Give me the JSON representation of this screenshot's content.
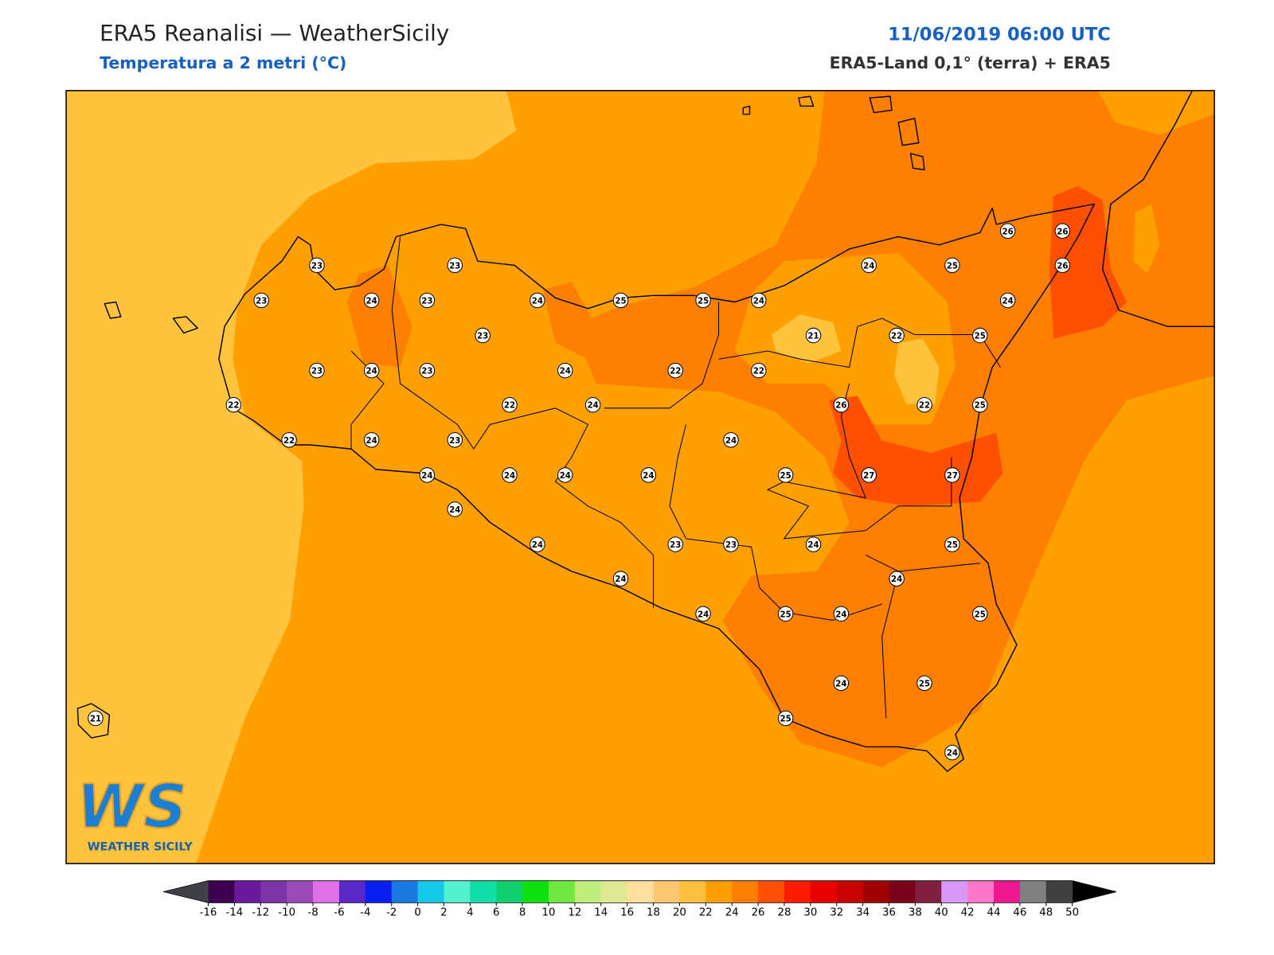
{
  "header": {
    "title": "ERA5 Reanalisi — WeatherSicily",
    "subtitle": "Temperatura a 2 metri (°C)",
    "datetime": "11/06/2019 06:00 UTC",
    "source": "ERA5-Land 0,1° (terra) + ERA5"
  },
  "stations": [
    23,
    23,
    23,
    24,
    23,
    24,
    25,
    25,
    24,
    23,
    23,
    24,
    23,
    24,
    22,
    22,
    22,
    22,
    24,
    22,
    24,
    23,
    24,
    24,
    24,
    24,
    24,
    24,
    24,
    24,
    23,
    23,
    24,
    24,
    25,
    24,
    25,
    27,
    27,
    26,
    22,
    25,
    21,
    22,
    25,
    24,
    25,
    24,
    26,
    26,
    26,
    25,
    24,
    25,
    24,
    25,
    25,
    24,
    21
  ],
  "colorbar": {
    "ticks": [
      -16,
      -14,
      -12,
      -10,
      -8,
      -6,
      -4,
      -2,
      0,
      2,
      4,
      6,
      8,
      10,
      12,
      14,
      16,
      18,
      20,
      22,
      24,
      26,
      28,
      30,
      32,
      34,
      36,
      38,
      40,
      42,
      44,
      46,
      48,
      50
    ],
    "colors": [
      "#3c0050",
      "#6a1a9a",
      "#7b35a8",
      "#9b4bb8",
      "#e070e8",
      "#5a28c8",
      "#0a1ef0",
      "#1a78e0",
      "#14c8e8",
      "#55f0d0",
      "#10e0a8",
      "#10d070",
      "#10e010",
      "#70e840",
      "#c0ec80",
      "#dde890",
      "#ffe0a0",
      "#ffc870",
      "#ffc040",
      "#ffa000",
      "#ff8000",
      "#ff5000",
      "#ff1a00",
      "#e60000",
      "#c80000",
      "#a00000",
      "#780018",
      "#802040",
      "#d898f8",
      "#ff78c8",
      "#f01890",
      "#808080",
      "#404040"
    ],
    "under_color": "#404048",
    "over_color": "#000000"
  },
  "logo": {
    "text": "WS",
    "subtitle": "WEATHER SICILY"
  }
}
